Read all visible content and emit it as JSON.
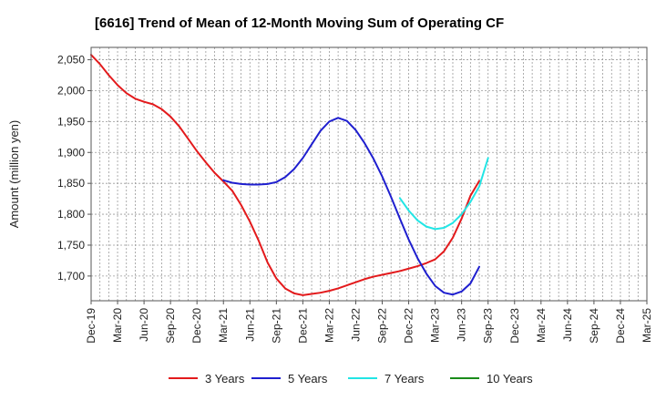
{
  "chart_data": {
    "type": "line",
    "title": "[6616]  Trend of Mean of 12-Month Moving Sum of Operating CF",
    "xlabel": "",
    "ylabel": "Amount (million yen)",
    "ylim": [
      1660,
      2070
    ],
    "yticks": [
      1700,
      1750,
      1800,
      1850,
      1900,
      1950,
      2000,
      2050
    ],
    "ytick_labels": [
      "1,700",
      "1,750",
      "1,800",
      "1,850",
      "1,900",
      "1,950",
      "2,000",
      "2,050"
    ],
    "xticks": [
      "Dec-19",
      "Mar-20",
      "Jun-20",
      "Sep-20",
      "Dec-20",
      "Mar-21",
      "Jun-21",
      "Sep-21",
      "Dec-21",
      "Mar-22",
      "Jun-22",
      "Sep-22",
      "Dec-22",
      "Mar-23",
      "Jun-23",
      "Sep-23",
      "Dec-23",
      "Mar-24",
      "Jun-24",
      "Sep-24",
      "Dec-24",
      "Mar-25"
    ],
    "grid": true,
    "legend_position": "bottom",
    "series": [
      {
        "name": "3 Years",
        "color": "#e31a1c",
        "points": [
          [
            0,
            2058
          ],
          [
            1,
            2043
          ],
          [
            2,
            2025
          ],
          [
            3,
            2009
          ],
          [
            4,
            1996
          ],
          [
            5,
            1987
          ],
          [
            6,
            1982
          ],
          [
            7,
            1978
          ],
          [
            8,
            1970
          ],
          [
            9,
            1958
          ],
          [
            10,
            1942
          ],
          [
            11,
            1922
          ],
          [
            12,
            1902
          ],
          [
            13,
            1884
          ],
          [
            14,
            1867
          ],
          [
            15,
            1853
          ],
          [
            16,
            1838
          ],
          [
            17,
            1815
          ],
          [
            18,
            1788
          ],
          [
            19,
            1757
          ],
          [
            20,
            1722
          ],
          [
            21,
            1696
          ],
          [
            22,
            1680
          ],
          [
            23,
            1672
          ],
          [
            24,
            1669
          ],
          [
            25,
            1671
          ],
          [
            26,
            1673
          ],
          [
            27,
            1676
          ],
          [
            28,
            1680
          ],
          [
            29,
            1685
          ],
          [
            30,
            1690
          ],
          [
            31,
            1695
          ],
          [
            32,
            1699
          ],
          [
            33,
            1702
          ],
          [
            34,
            1705
          ],
          [
            35,
            1708
          ],
          [
            36,
            1712
          ],
          [
            37,
            1716
          ],
          [
            38,
            1721
          ],
          [
            39,
            1727
          ],
          [
            40,
            1740
          ],
          [
            41,
            1762
          ],
          [
            42,
            1793
          ],
          [
            43,
            1830
          ],
          [
            44,
            1854
          ]
        ]
      },
      {
        "name": "5 Years",
        "color": "#1f1fcf",
        "points": [
          [
            15,
            1855
          ],
          [
            16,
            1851
          ],
          [
            17,
            1849
          ],
          [
            18,
            1848
          ],
          [
            19,
            1848
          ],
          [
            20,
            1849
          ],
          [
            21,
            1852
          ],
          [
            22,
            1860
          ],
          [
            23,
            1873
          ],
          [
            24,
            1891
          ],
          [
            25,
            1913
          ],
          [
            26,
            1935
          ],
          [
            27,
            1950
          ],
          [
            28,
            1956
          ],
          [
            29,
            1951
          ],
          [
            30,
            1936
          ],
          [
            31,
            1915
          ],
          [
            32,
            1890
          ],
          [
            33,
            1861
          ],
          [
            34,
            1828
          ],
          [
            35,
            1793
          ],
          [
            36,
            1759
          ],
          [
            37,
            1729
          ],
          [
            38,
            1704
          ],
          [
            39,
            1684
          ],
          [
            40,
            1673
          ],
          [
            41,
            1670
          ],
          [
            42,
            1675
          ],
          [
            43,
            1688
          ],
          [
            44,
            1715
          ]
        ]
      },
      {
        "name": "7 Years",
        "color": "#22e5e5",
        "points": [
          [
            35,
            1826
          ],
          [
            36,
            1806
          ],
          [
            37,
            1790
          ],
          [
            38,
            1780
          ],
          [
            39,
            1776
          ],
          [
            40,
            1778
          ],
          [
            41,
            1786
          ],
          [
            42,
            1800
          ],
          [
            43,
            1820
          ],
          [
            44,
            1845
          ],
          [
            45,
            1891
          ]
        ]
      },
      {
        "name": "10 Years",
        "color": "#1a8c1a",
        "points": []
      }
    ]
  }
}
